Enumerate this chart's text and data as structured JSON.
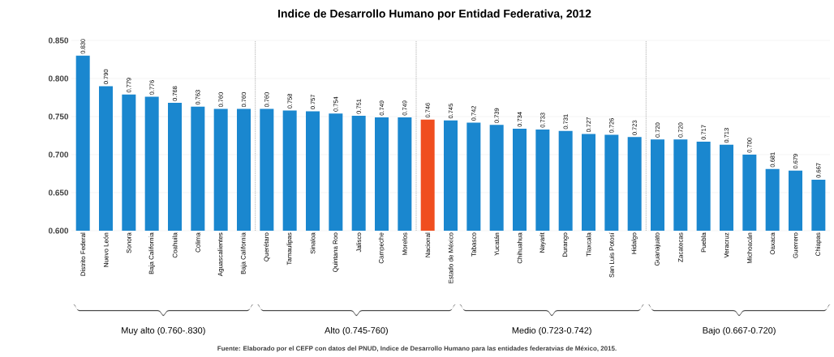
{
  "chart_data": {
    "type": "bar",
    "title": "Indice de Desarrollo Humano por Entidad Federativa, 2012",
    "categories": [
      "Distrito Federal",
      "Nuevo León",
      "Sonora",
      "Baja California",
      "Coahuila",
      "Colima",
      "Aguascalientes",
      "Baja California",
      "Querétaro",
      "Tamaulipas",
      "Sinaloa",
      "Quintana Roo",
      "Jalisco",
      "Campeche",
      "Morelos",
      "Nacional",
      "Estado de México",
      "Tabasco",
      "Yucatán",
      "Chihuahua",
      "Nayarit",
      "Durango",
      "Tlaxcala",
      "San Luis Potosí",
      "Hidalgo",
      "Guanajuato",
      "Zacatecas",
      "Puebla",
      "Veracruz",
      "Michoacán",
      "Oaxaca",
      "Guerrero",
      "Chiapas"
    ],
    "values": [
      0.83,
      0.79,
      0.779,
      0.776,
      0.768,
      0.763,
      0.76,
      0.76,
      0.76,
      0.758,
      0.757,
      0.754,
      0.751,
      0.749,
      0.749,
      0.746,
      0.745,
      0.742,
      0.739,
      0.734,
      0.733,
      0.731,
      0.727,
      0.726,
      0.723,
      0.72,
      0.72,
      0.717,
      0.713,
      0.7,
      0.681,
      0.679,
      0.667
    ],
    "value_labels": [
      "0.830",
      "0.790",
      "0.779",
      "0.776",
      "0.768",
      "0.763",
      "0.760",
      "0.760",
      "0.760",
      "0.758",
      "0.757",
      "0.754",
      "0.751",
      "0.749",
      "0.749",
      "0.746",
      "0.745",
      "0.742",
      "0.739",
      "0.734",
      "0.733",
      "0.731",
      "0.727",
      "0.726",
      "0.723",
      "0.720",
      "0.720",
      "0.717",
      "0.713",
      "0.700",
      "0.681",
      "0.679",
      "0.667"
    ],
    "colors": [
      "#1a87cf",
      "#1a87cf",
      "#1a87cf",
      "#1a87cf",
      "#1a87cf",
      "#1a87cf",
      "#1a87cf",
      "#1a87cf",
      "#1a87cf",
      "#1a87cf",
      "#1a87cf",
      "#1a87cf",
      "#1a87cf",
      "#1a87cf",
      "#1a87cf",
      "#f04e1f",
      "#1a87cf",
      "#1a87cf",
      "#1a87cf",
      "#1a87cf",
      "#1a87cf",
      "#1a87cf",
      "#1a87cf",
      "#1a87cf",
      "#1a87cf",
      "#1a87cf",
      "#1a87cf",
      "#1a87cf",
      "#1a87cf",
      "#1a87cf",
      "#1a87cf",
      "#1a87cf",
      "#1a87cf"
    ],
    "ylim": [
      0.6,
      0.85
    ],
    "yticks": [
      {
        "value": 0.6,
        "label": "0.600"
      },
      {
        "value": 0.65,
        "label": "0.650"
      },
      {
        "value": 0.7,
        "label": "0.700"
      },
      {
        "value": 0.75,
        "label": "0.750"
      },
      {
        "value": 0.8,
        "label": "0.800"
      },
      {
        "value": 0.85,
        "label": "0.850"
      }
    ],
    "grid": "y",
    "annotations": [
      "Muy alto (0.760-.830)",
      "Alto (0.745-760)",
      "Medio (0.723-0.742)",
      "Bajo (0.667-0.720)",
      "Fuente: Elaborado por el CEFP con datos del PNUD, Indice de Desarrollo Humano para las entidades federatvias de México, 2015."
    ]
  }
}
